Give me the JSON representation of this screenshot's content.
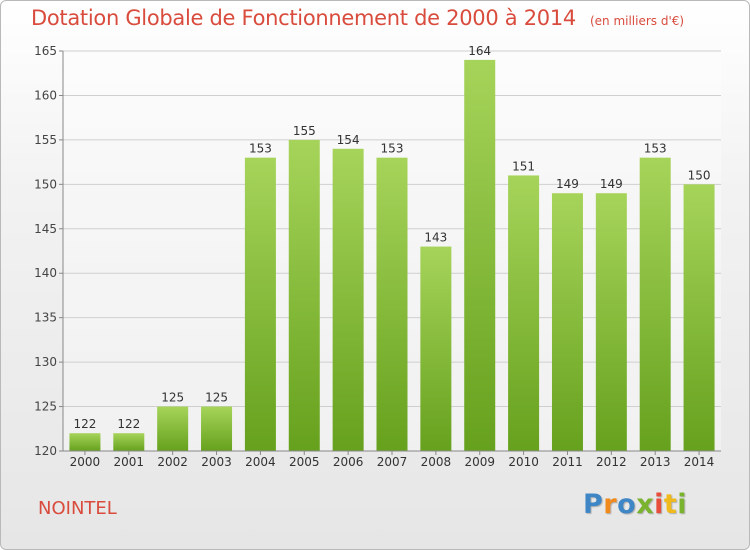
{
  "header": {
    "title": "Dotation Globale de Fonctionnement de 2000 à 2014",
    "unit": "(en milliers d'€)"
  },
  "footer": {
    "commune": "NOINTEL",
    "logo_text": "Proxiti"
  },
  "colors": {
    "bar_light": "#a6d45a",
    "bar_dark": "#66a11d",
    "title": "#d94c3d",
    "logo": [
      "#3f86c7",
      "#f08a1c",
      "#3f86c7",
      "#7ab32e",
      "#e84c3a",
      "#f0b91c",
      "#7ab32e"
    ]
  },
  "chart_data": {
    "type": "bar",
    "title": "Dotation Globale de Fonctionnement de 2000 à 2014",
    "subtitle": "(en milliers d'€)",
    "categories": [
      "2000",
      "2001",
      "2002",
      "2003",
      "2004",
      "2005",
      "2006",
      "2007",
      "2008",
      "2009",
      "2010",
      "2011",
      "2012",
      "2013",
      "2014"
    ],
    "values": [
      122,
      122,
      125,
      125,
      153,
      155,
      154,
      153,
      143,
      164,
      151,
      149,
      149,
      153,
      150
    ],
    "ylim": [
      120,
      165
    ],
    "yticks": [
      120,
      125,
      130,
      135,
      140,
      145,
      150,
      155,
      160,
      165
    ],
    "grid": true,
    "data_labels": true
  }
}
